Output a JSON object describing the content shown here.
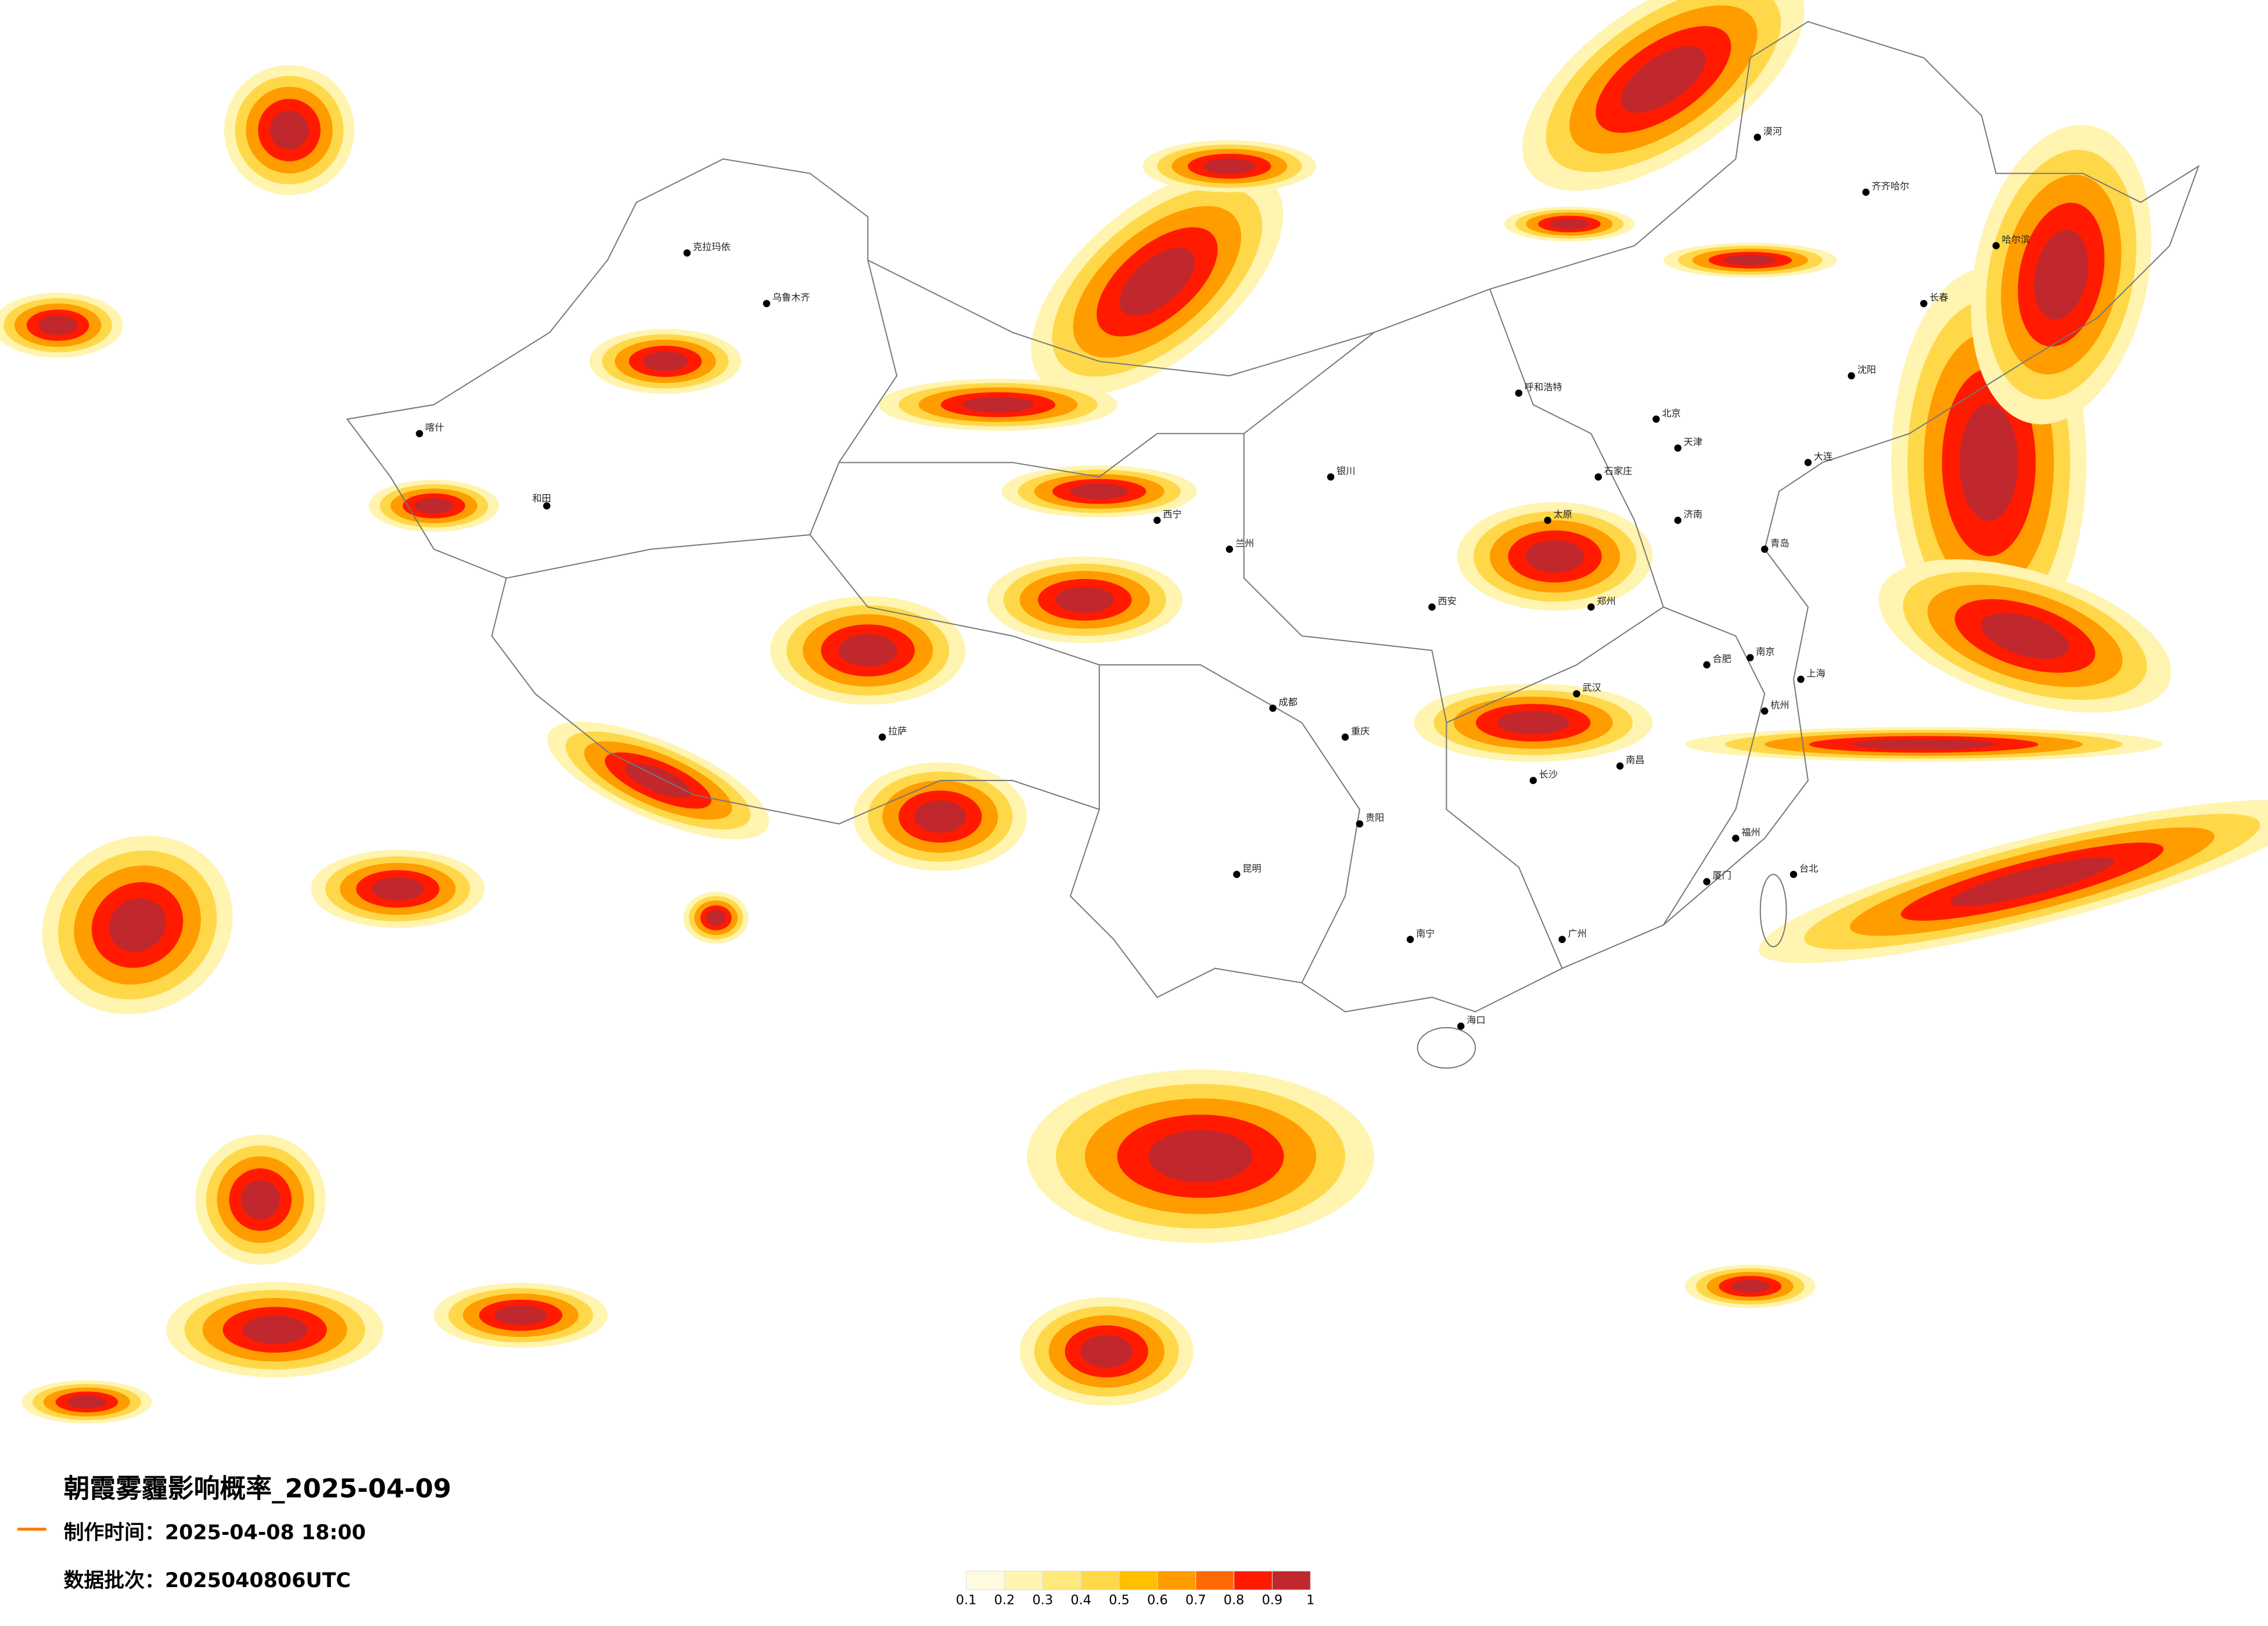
{
  "title": "朝霞雾霾影响概率_2025-04-09",
  "production_time": "制作时间：2025-04-08 18:00",
  "batch": "数据批次：2025040806UTC",
  "legend": {
    "ticks": [
      0.1,
      0.2,
      0.3,
      0.4,
      0.5,
      0.6,
      0.7,
      0.8,
      0.9,
      1
    ],
    "colors": [
      "#fffbe0",
      "#fff4b0",
      "#ffe97a",
      "#ffd84a",
      "#ffc000",
      "#ff9c00",
      "#ff6a00",
      "#ff1a00",
      "#c0282d"
    ]
  },
  "cities": [
    "北京",
    "天津",
    "石家庄",
    "太原",
    "济南",
    "郑州",
    "西安",
    "武汉",
    "长沙",
    "南昌",
    "合肥",
    "南京",
    "上海",
    "杭州",
    "福州",
    "广州",
    "南宁",
    "海口",
    "贵阳",
    "昆明",
    "成都",
    "重庆",
    "兰州",
    "西宁",
    "银川",
    "呼和浩特",
    "哈尔滨",
    "长春",
    "沈阳",
    "乌鲁木齐",
    "拉萨",
    "台北",
    "大连",
    "青岛",
    "厦门",
    "漠河",
    "齐齐哈尔",
    "喀什",
    "和田",
    "克拉玛依"
  ]
}
